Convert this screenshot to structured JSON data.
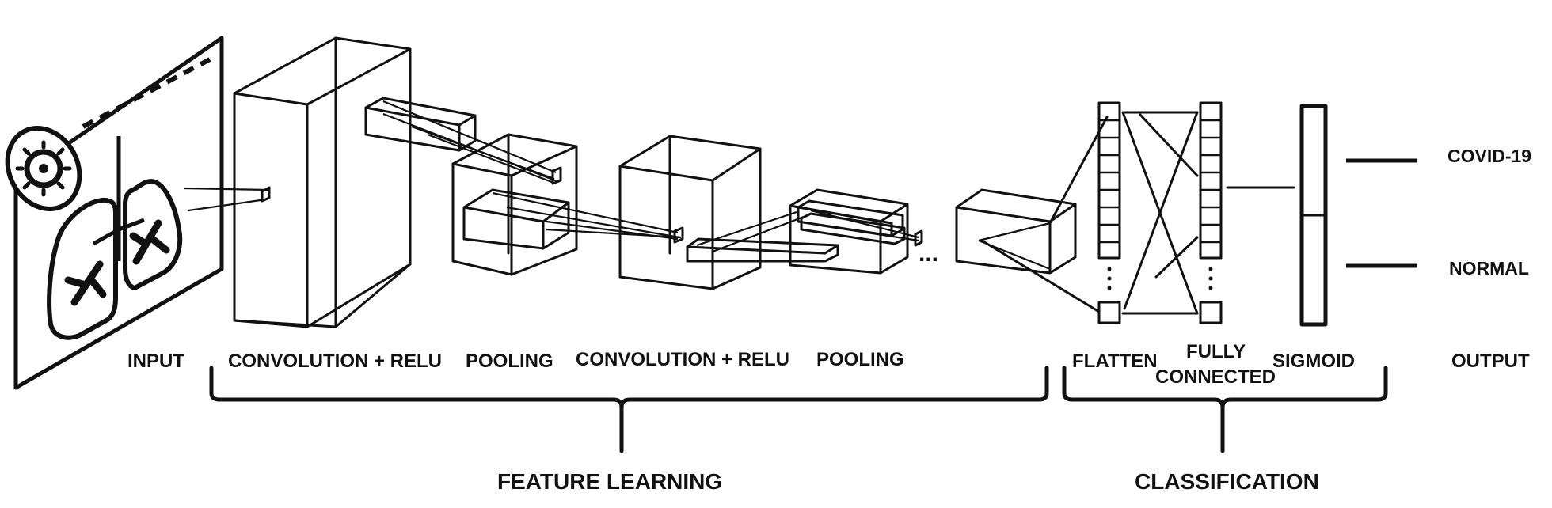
{
  "stages": {
    "input": "INPUT",
    "conv1": "CONVOLUTION + RELU",
    "pool1": "POOLING",
    "conv2": "CONVOLUTION + RELU",
    "pool2": "POOLING",
    "flatten": "FLATTEN",
    "fully_connected_line1": "FULLY",
    "fully_connected_line2": "CONNECTED",
    "sigmoid": "SIGMOID",
    "output": "OUTPUT"
  },
  "groups": {
    "feature_learning": "FEATURE LEARNING",
    "classification": "CLASSIFICATION"
  },
  "outputs": {
    "class1": "COVID-19",
    "class2": "NORMAL"
  },
  "ellipsis": "...",
  "icons": {
    "input_image": "chest-xray-virus-icon"
  },
  "colors": {
    "line": "#111111",
    "background": "#ffffff"
  }
}
